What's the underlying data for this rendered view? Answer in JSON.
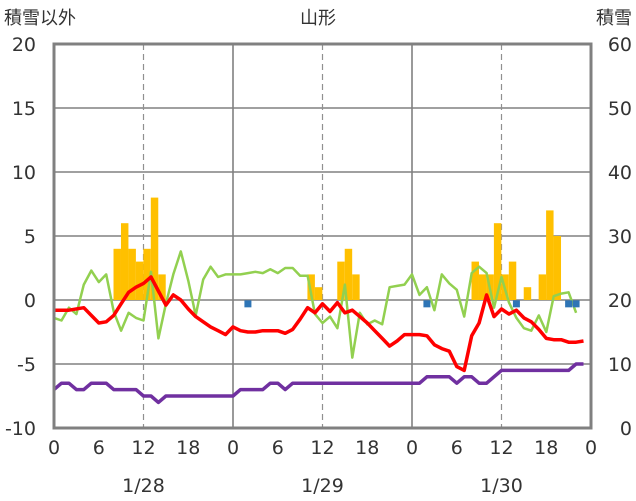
{
  "chart_data": {
    "type": "bar+line",
    "title": "山形",
    "y_left_label": "積雪以外",
    "y_right_label": "積雪",
    "y_left_range": [
      -10,
      20
    ],
    "y_left_ticks": [
      -10,
      -5,
      0,
      5,
      10,
      15,
      20
    ],
    "y_right_range": [
      0,
      60
    ],
    "y_right_ticks": [
      0,
      10,
      20,
      30,
      40,
      50,
      60
    ],
    "x_range": [
      0,
      72
    ],
    "x_tick_labels": [
      "0",
      "6",
      "12",
      "18",
      "0",
      "6",
      "12",
      "18",
      "0",
      "6",
      "12",
      "18",
      "0"
    ],
    "date_labels": [
      {
        "label": "1/28",
        "hour": 12
      },
      {
        "label": "1/29",
        "hour": 36
      },
      {
        "label": "1/30",
        "hour": 60
      }
    ],
    "grid": "dashed verticals at 12h, solid verticals at day boundaries",
    "colors": {
      "snow_bars": "#FFC000",
      "temperature": "#FF0000",
      "green_series": "#92D050",
      "purple_series": "#7030A0",
      "blue_markers": "#2E75B6",
      "frame": "#808080"
    },
    "series": [
      {
        "kind": "bar",
        "axis": "left",
        "values": [
          [
            8,
            4
          ],
          [
            9,
            6
          ],
          [
            10,
            4
          ],
          [
            11,
            3
          ],
          [
            12,
            4
          ],
          [
            13,
            8
          ],
          [
            14,
            2
          ],
          [
            34,
            2
          ],
          [
            35,
            1
          ],
          [
            38,
            3
          ],
          [
            39,
            4
          ],
          [
            40,
            2
          ],
          [
            56,
            3
          ],
          [
            57,
            2
          ],
          [
            58,
            2
          ],
          [
            59,
            6
          ],
          [
            60,
            2
          ],
          [
            61,
            3
          ],
          [
            63,
            1
          ],
          [
            65,
            2
          ],
          [
            66,
            7
          ],
          [
            67,
            5
          ]
        ]
      },
      {
        "kind": "markers",
        "axis": "left",
        "values": [
          [
            26,
            -0.3
          ],
          [
            50,
            -0.3
          ],
          [
            62,
            -0.3
          ],
          [
            69,
            -0.3
          ],
          [
            70,
            -0.3
          ]
        ]
      },
      {
        "kind": "line",
        "axis": "left",
        "values": [
          [
            0,
            -0.8
          ],
          [
            2,
            -0.8
          ],
          [
            4,
            -0.6
          ],
          [
            5,
            -1.2
          ],
          [
            6,
            -1.8
          ],
          [
            7,
            -1.7
          ],
          [
            8,
            -1.2
          ],
          [
            9,
            -0.3
          ],
          [
            10,
            0.6
          ],
          [
            11,
            1.0
          ],
          [
            12,
            1.3
          ],
          [
            13,
            1.8
          ],
          [
            14,
            0.7
          ],
          [
            15,
            -0.4
          ],
          [
            16,
            0.4
          ],
          [
            17,
            0
          ],
          [
            18,
            -0.7
          ],
          [
            19,
            -1.3
          ],
          [
            20,
            -1.7
          ],
          [
            21,
            -2.1
          ],
          [
            22,
            -2.4
          ],
          [
            23,
            -2.7
          ],
          [
            24,
            -2.1
          ],
          [
            25,
            -2.4
          ],
          [
            26,
            -2.5
          ],
          [
            27,
            -2.5
          ],
          [
            28,
            -2.4
          ],
          [
            29,
            -2.4
          ],
          [
            30,
            -2.4
          ],
          [
            31,
            -2.6
          ],
          [
            32,
            -2.3
          ],
          [
            33,
            -1.5
          ],
          [
            34,
            -0.6
          ],
          [
            35,
            -1.0
          ],
          [
            36,
            -0.3
          ],
          [
            37,
            -0.9
          ],
          [
            38,
            -0.2
          ],
          [
            39,
            -1.0
          ],
          [
            40,
            -0.8
          ],
          [
            41,
            -1.3
          ],
          [
            42,
            -1.8
          ],
          [
            43,
            -2.4
          ],
          [
            44,
            -3.0
          ],
          [
            45,
            -3.6
          ],
          [
            46,
            -3.2
          ],
          [
            47,
            -2.7
          ],
          [
            48,
            -2.7
          ],
          [
            49,
            -2.7
          ],
          [
            50,
            -2.8
          ],
          [
            51,
            -3.5
          ],
          [
            52,
            -3.8
          ],
          [
            53,
            -4.0
          ],
          [
            54,
            -5.2
          ],
          [
            55,
            -5.5
          ],
          [
            56,
            -2.8
          ],
          [
            57,
            -1.8
          ],
          [
            58,
            0.4
          ],
          [
            59,
            -1.3
          ],
          [
            60,
            -0.7
          ],
          [
            61,
            -1.1
          ],
          [
            62,
            -0.8
          ],
          [
            63,
            -1.4
          ],
          [
            64,
            -1.7
          ],
          [
            65,
            -2.3
          ],
          [
            66,
            -3.0
          ],
          [
            67,
            -3.1
          ],
          [
            68,
            -3.1
          ],
          [
            69,
            -3.3
          ],
          [
            70,
            -3.3
          ],
          [
            71,
            -3.2
          ]
        ]
      },
      {
        "kind": "line",
        "axis": "left",
        "values": [
          [
            0,
            -1.4
          ],
          [
            1,
            -1.6
          ],
          [
            2,
            -0.6
          ],
          [
            3,
            -1.1
          ],
          [
            4,
            1.2
          ],
          [
            5,
            2.3
          ],
          [
            6,
            1.4
          ],
          [
            7,
            2.0
          ],
          [
            8,
            -0.9
          ],
          [
            9,
            -2.4
          ],
          [
            10,
            -1.0
          ],
          [
            11,
            -1.4
          ],
          [
            12,
            -1.6
          ],
          [
            13,
            2.2
          ],
          [
            14,
            -3.0
          ],
          [
            15,
            -0.3
          ],
          [
            16,
            2.0
          ],
          [
            17,
            3.8
          ],
          [
            18,
            1.5
          ],
          [
            19,
            -1.2
          ],
          [
            20,
            1.6
          ],
          [
            21,
            2.6
          ],
          [
            22,
            1.8
          ],
          [
            23,
            2.0
          ],
          [
            24,
            2.0
          ],
          [
            25,
            2.0
          ],
          [
            26,
            2.1
          ],
          [
            27,
            2.2
          ],
          [
            28,
            2.1
          ],
          [
            29,
            2.4
          ],
          [
            30,
            2.1
          ],
          [
            31,
            2.5
          ],
          [
            32,
            2.5
          ],
          [
            33,
            1.9
          ],
          [
            34,
            1.9
          ],
          [
            35,
            -1.1
          ],
          [
            36,
            -1.8
          ],
          [
            37,
            -1.3
          ],
          [
            38,
            -2.2
          ],
          [
            39,
            1.2
          ],
          [
            40,
            -4.5
          ],
          [
            41,
            -1.0
          ],
          [
            42,
            -1.9
          ],
          [
            43,
            -1.6
          ],
          [
            44,
            -1.9
          ],
          [
            45,
            1.0
          ],
          [
            46,
            1.1
          ],
          [
            47,
            1.2
          ],
          [
            48,
            2.0
          ],
          [
            49,
            0.4
          ],
          [
            50,
            1.0
          ],
          [
            51,
            -0.8
          ],
          [
            52,
            2.0
          ],
          [
            53,
            1.3
          ],
          [
            54,
            0.8
          ],
          [
            55,
            -1.3
          ],
          [
            56,
            2.1
          ],
          [
            57,
            2.6
          ],
          [
            58,
            2.1
          ],
          [
            59,
            -0.6
          ],
          [
            60,
            1.8
          ],
          [
            61,
            -0.2
          ],
          [
            62,
            -1.4
          ],
          [
            63,
            -2.2
          ],
          [
            64,
            -2.4
          ],
          [
            65,
            -1.2
          ],
          [
            66,
            -2.5
          ],
          [
            67,
            0.3
          ],
          [
            68,
            0.5
          ],
          [
            69,
            0.6
          ],
          [
            70,
            -1.0
          ]
        ]
      },
      {
        "kind": "line",
        "axis": "left",
        "values": [
          [
            0,
            -7.0
          ],
          [
            1,
            -6.5
          ],
          [
            2,
            -6.5
          ],
          [
            3,
            -7.0
          ],
          [
            4,
            -7.0
          ],
          [
            5,
            -6.5
          ],
          [
            6,
            -6.5
          ],
          [
            7,
            -6.5
          ],
          [
            8,
            -7.0
          ],
          [
            9,
            -7.0
          ],
          [
            10,
            -7.0
          ],
          [
            11,
            -7.0
          ],
          [
            12,
            -7.5
          ],
          [
            13,
            -7.5
          ],
          [
            14,
            -8.0
          ],
          [
            15,
            -7.5
          ],
          [
            16,
            -7.5
          ],
          [
            17,
            -7.5
          ],
          [
            18,
            -7.5
          ],
          [
            19,
            -7.5
          ],
          [
            20,
            -7.5
          ],
          [
            21,
            -7.5
          ],
          [
            22,
            -7.5
          ],
          [
            23,
            -7.5
          ],
          [
            24,
            -7.5
          ],
          [
            25,
            -7.0
          ],
          [
            26,
            -7.0
          ],
          [
            27,
            -7.0
          ],
          [
            28,
            -7.0
          ],
          [
            29,
            -6.5
          ],
          [
            30,
            -6.5
          ],
          [
            31,
            -7.0
          ],
          [
            32,
            -6.5
          ],
          [
            33,
            -6.5
          ],
          [
            34,
            -6.5
          ],
          [
            35,
            -6.5
          ],
          [
            36,
            -6.5
          ],
          [
            37,
            -6.5
          ],
          [
            38,
            -6.5
          ],
          [
            39,
            -6.5
          ],
          [
            40,
            -6.5
          ],
          [
            41,
            -6.5
          ],
          [
            42,
            -6.5
          ],
          [
            43,
            -6.5
          ],
          [
            44,
            -6.5
          ],
          [
            45,
            -6.5
          ],
          [
            46,
            -6.5
          ],
          [
            47,
            -6.5
          ],
          [
            48,
            -6.5
          ],
          [
            49,
            -6.5
          ],
          [
            50,
            -6.0
          ],
          [
            51,
            -6.0
          ],
          [
            52,
            -6.0
          ],
          [
            53,
            -6.0
          ],
          [
            54,
            -6.5
          ],
          [
            55,
            -6.0
          ],
          [
            56,
            -6.0
          ],
          [
            57,
            -6.5
          ],
          [
            58,
            -6.5
          ],
          [
            59,
            -6.0
          ],
          [
            60,
            -5.5
          ],
          [
            61,
            -5.5
          ],
          [
            62,
            -5.5
          ],
          [
            63,
            -5.5
          ],
          [
            64,
            -5.5
          ],
          [
            65,
            -5.5
          ],
          [
            66,
            -5.5
          ],
          [
            67,
            -5.5
          ],
          [
            68,
            -5.5
          ],
          [
            69,
            -5.5
          ],
          [
            70,
            -5.0
          ],
          [
            71,
            -5.0
          ]
        ]
      }
    ]
  }
}
